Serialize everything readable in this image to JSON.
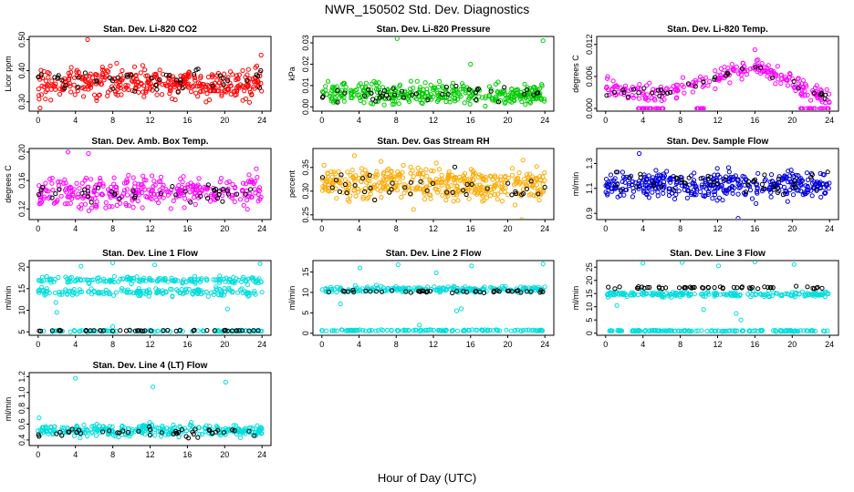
{
  "figure": {
    "title": "NWR_150502  Std. Dev. Diagnostics",
    "xlabel": "Hour of Day (UTC)"
  },
  "chart_data": [
    {
      "type": "scatter",
      "title": "Stan. Dev. Li-820 CO2",
      "ylabel": "Licor ppm",
      "xlim": [
        0,
        24
      ],
      "xticks": [
        0,
        4,
        8,
        12,
        16,
        20,
        24
      ],
      "ylim": [
        0.27,
        0.51
      ],
      "yticks": [
        0.3,
        0.4,
        0.5
      ],
      "ytick_labels": [
        "0.30",
        "0.40",
        "0.50"
      ],
      "color": "#ff0000",
      "series": [
        {
          "kind": "band",
          "x_range": [
            0,
            24
          ],
          "center": 0.36,
          "spread": 0.04,
          "count": 380,
          "color": "#ff0000"
        },
        {
          "kind": "band",
          "x_range": [
            0,
            24
          ],
          "center": 0.37,
          "spread": 0.03,
          "count": 45,
          "color": "#000000"
        }
      ],
      "outliers": [
        {
          "x": 5.3,
          "y": 0.5
        },
        {
          "x": 23.9,
          "y": 0.45
        },
        {
          "x": 0.2,
          "y": 0.28
        }
      ]
    },
    {
      "type": "scatter",
      "title": "Stan. Dev. Li-820 Pressure",
      "ylabel": "kPa",
      "xlim": [
        0,
        24
      ],
      "xticks": [
        0,
        4,
        8,
        12,
        16,
        20,
        24
      ],
      "ylim": [
        -0.002,
        0.033
      ],
      "yticks": [
        0.0,
        0.01,
        0.02,
        0.03
      ],
      "ytick_labels": [
        "0.00",
        "0.01",
        "0.02",
        "0.03"
      ],
      "color": "#00cc00",
      "series": [
        {
          "kind": "band",
          "x_range": [
            0,
            24
          ],
          "center": 0.006,
          "spread": 0.004,
          "count": 360,
          "color": "#00cc00"
        },
        {
          "kind": "band",
          "x_range": [
            0,
            24
          ],
          "center": 0.006,
          "spread": 0.003,
          "count": 40,
          "color": "#000000"
        }
      ],
      "outliers": [
        {
          "x": 8.1,
          "y": 0.032
        },
        {
          "x": 16.0,
          "y": 0.02
        },
        {
          "x": 23.8,
          "y": 0.031
        }
      ]
    },
    {
      "type": "scatter",
      "title": "Stan. Dev. Li-820 Temp.",
      "ylabel": "degrees C",
      "xlim": [
        0,
        24
      ],
      "xticks": [
        0,
        4,
        8,
        12,
        16,
        20,
        24
      ],
      "ylim": [
        -0.0005,
        0.0135
      ],
      "yticks": [
        0.0,
        0.006,
        0.012
      ],
      "ytick_labels": [
        "0.000",
        "0.006",
        "0.012"
      ],
      "color": "#ff00ff",
      "series": [
        {
          "kind": "curve",
          "x_range": [
            0,
            24
          ],
          "profile": [
            [
              0,
              0.004
            ],
            [
              3,
              0.003
            ],
            [
              6,
              0.003
            ],
            [
              9,
              0.004
            ],
            [
              12,
              0.006
            ],
            [
              16,
              0.008
            ],
            [
              19,
              0.006
            ],
            [
              21,
              0.004
            ],
            [
              24,
              0.002
            ]
          ],
          "spread": 0.0015,
          "count": 240,
          "color": "#ff00ff"
        },
        {
          "kind": "line_flat",
          "x_range": [
            3.5,
            6.5
          ],
          "y": 0.0,
          "count": 20,
          "color": "#ff00ff"
        },
        {
          "kind": "line_flat",
          "x_range": [
            9.5,
            10.5
          ],
          "y": 0.0,
          "count": 8,
          "color": "#ff00ff"
        },
        {
          "kind": "line_flat",
          "x_range": [
            20.5,
            24
          ],
          "y": 0.0,
          "count": 18,
          "color": "#ff00ff"
        },
        {
          "kind": "curve",
          "x_range": [
            0,
            24
          ],
          "profile": [
            [
              0,
              0.003
            ],
            [
              6,
              0.003
            ],
            [
              12,
              0.006
            ],
            [
              16,
              0.008
            ],
            [
              20,
              0.005
            ],
            [
              24,
              0.002
            ]
          ],
          "spread": 0.001,
          "count": 35,
          "color": "#000000"
        }
      ],
      "outliers": [
        {
          "x": 16.0,
          "y": 0.011
        }
      ]
    },
    {
      "type": "scatter",
      "title": "Stan. Dev. Amb. Box Temp.",
      "ylabel": "degrees C",
      "xlim": [
        0,
        24
      ],
      "xticks": [
        0,
        4,
        8,
        12,
        16,
        20,
        24
      ],
      "ylim": [
        0.105,
        0.205
      ],
      "yticks": [
        0.12,
        0.16,
        0.2
      ],
      "ytick_labels": [
        "0.12",
        "0.16",
        "0.20"
      ],
      "color": "#ff00ff",
      "series": [
        {
          "kind": "band",
          "x_range": [
            0,
            24
          ],
          "center": 0.145,
          "spread": 0.018,
          "count": 320,
          "color": "#ff00ff"
        },
        {
          "kind": "band",
          "x_range": [
            0,
            24
          ],
          "center": 0.142,
          "spread": 0.012,
          "count": 40,
          "color": "#000000"
        }
      ],
      "outliers": [
        {
          "x": 3.2,
          "y": 0.2
        },
        {
          "x": 5.4,
          "y": 0.198
        }
      ]
    },
    {
      "type": "scatter",
      "title": "Stan. Dev. Gas Stream RH",
      "ylabel": "percent",
      "xlim": [
        0,
        24
      ],
      "xticks": [
        0,
        4,
        8,
        12,
        16,
        20,
        24
      ],
      "ylim": [
        0.24,
        0.39
      ],
      "yticks": [
        0.25,
        0.3,
        0.35
      ],
      "ytick_labels": [
        "0.25",
        "0.30",
        "0.35"
      ],
      "color": "#ffaa00",
      "series": [
        {
          "kind": "band",
          "x_range": [
            0,
            24
          ],
          "center": 0.315,
          "spread": 0.028,
          "count": 420,
          "color": "#ffaa00"
        },
        {
          "kind": "band",
          "x_range": [
            0,
            24
          ],
          "center": 0.31,
          "spread": 0.025,
          "count": 40,
          "color": "#000000"
        }
      ],
      "outliers": [
        {
          "x": 3.5,
          "y": 0.375
        },
        {
          "x": 21.5,
          "y": 0.24
        }
      ]
    },
    {
      "type": "scatter",
      "title": "Stan. Dev. Sample Flow",
      "ylabel": "ml/min",
      "xlim": [
        0,
        24
      ],
      "xticks": [
        0,
        4,
        8,
        12,
        16,
        20,
        24
      ],
      "ylim": [
        0.85,
        1.42
      ],
      "yticks": [
        0.9,
        1.1,
        1.3
      ],
      "ytick_labels": [
        "0.9",
        "1.1",
        "1.3"
      ],
      "color": "#0000dd",
      "series": [
        {
          "kind": "band",
          "x_range": [
            0,
            24
          ],
          "center": 1.13,
          "spread": 0.09,
          "count": 400,
          "color": "#0000dd"
        },
        {
          "kind": "band",
          "x_range": [
            0,
            24
          ],
          "center": 1.15,
          "spread": 0.07,
          "count": 45,
          "color": "#000000"
        }
      ],
      "outliers": [
        {
          "x": 3.6,
          "y": 1.38
        },
        {
          "x": 14.2,
          "y": 0.86
        }
      ]
    },
    {
      "type": "scatter",
      "title": "Stan. Dev. Line 1 Flow",
      "ylabel": "ml/min",
      "xlim": [
        0,
        24
      ],
      "xticks": [
        0,
        4,
        8,
        12,
        16,
        20,
        24
      ],
      "ylim": [
        4.2,
        21.5
      ],
      "yticks": [
        5,
        10,
        15,
        20
      ],
      "ytick_labels": [
        "5",
        "10",
        "15",
        "20"
      ],
      "color": "#00dddd",
      "series": [
        {
          "kind": "band",
          "x_range": [
            0,
            24
          ],
          "center": 17.0,
          "spread": 0.6,
          "count": 170,
          "color": "#00dddd"
        },
        {
          "kind": "band",
          "x_range": [
            0,
            24
          ],
          "center": 14.2,
          "spread": 0.7,
          "count": 170,
          "color": "#00dddd"
        },
        {
          "kind": "band",
          "x_range": [
            0,
            24
          ],
          "center": 5.2,
          "spread": 0.15,
          "count": 90,
          "color": "#00dddd"
        },
        {
          "kind": "band",
          "x_range": [
            0,
            24
          ],
          "center": 5.3,
          "spread": 0.1,
          "count": 45,
          "color": "#000000"
        }
      ],
      "outliers": [
        {
          "x": 8.0,
          "y": 21.0
        },
        {
          "x": 4.6,
          "y": 20.2
        },
        {
          "x": 12.5,
          "y": 20.5
        },
        {
          "x": 23.8,
          "y": 20.8
        },
        {
          "x": 2.0,
          "y": 9.5
        },
        {
          "x": 1.9,
          "y": 11.8
        },
        {
          "x": 8.0,
          "y": 6.2
        },
        {
          "x": 20.3,
          "y": 10.3
        }
      ]
    },
    {
      "type": "scatter",
      "title": "Stan. Dev. Line 2 Flow",
      "ylabel": "ml/min",
      "xlim": [
        0,
        24
      ],
      "xticks": [
        0,
        4,
        8,
        12,
        16,
        20,
        24
      ],
      "ylim": [
        -0.5,
        17.8
      ],
      "yticks": [
        0,
        5,
        10,
        15
      ],
      "ytick_labels": [
        "0",
        "5",
        "10",
        "15"
      ],
      "color": "#00dddd",
      "series": [
        {
          "kind": "band",
          "x_range": [
            0,
            24
          ],
          "center": 10.8,
          "spread": 0.6,
          "count": 210,
          "color": "#00dddd"
        },
        {
          "kind": "band",
          "x_range": [
            0,
            24
          ],
          "center": 0.7,
          "spread": 0.15,
          "count": 120,
          "color": "#00dddd"
        },
        {
          "kind": "band",
          "x_range": [
            0,
            24
          ],
          "center": 10.3,
          "spread": 0.3,
          "count": 45,
          "color": "#000000"
        }
      ],
      "outliers": [
        {
          "x": 4.1,
          "y": 16.0
        },
        {
          "x": 8.2,
          "y": 16.8
        },
        {
          "x": 16.1,
          "y": 16.5
        },
        {
          "x": 23.8,
          "y": 17.0
        },
        {
          "x": 12.3,
          "y": 14.8
        },
        {
          "x": 2.0,
          "y": 7.2
        },
        {
          "x": 14.5,
          "y": 5.5
        },
        {
          "x": 15.0,
          "y": 6.0
        },
        {
          "x": 10.5,
          "y": 2.0
        }
      ]
    },
    {
      "type": "scatter",
      "title": "Stan. Dev. Line 3 Flow",
      "ylabel": "ml/min",
      "xlim": [
        0,
        24
      ],
      "xticks": [
        0,
        4,
        8,
        12,
        16,
        20,
        24
      ],
      "ylim": [
        -0.8,
        27.5
      ],
      "yticks": [
        0,
        5,
        10,
        15,
        20,
        25
      ],
      "ytick_labels": [
        "0",
        "5",
        "10",
        "15",
        "20",
        "25"
      ],
      "color": "#00dddd",
      "series": [
        {
          "kind": "band",
          "x_range": [
            0,
            24
          ],
          "center": 14.8,
          "spread": 0.8,
          "count": 200,
          "color": "#00dddd"
        },
        {
          "kind": "band",
          "x_range": [
            0,
            24
          ],
          "center": 0.9,
          "spread": 0.2,
          "count": 130,
          "color": "#00dddd"
        },
        {
          "kind": "band",
          "x_range": [
            0,
            24
          ],
          "center": 17.2,
          "spread": 0.4,
          "count": 50,
          "color": "#000000"
        }
      ],
      "outliers": [
        {
          "x": 4.0,
          "y": 26.5
        },
        {
          "x": 8.2,
          "y": 26.8
        },
        {
          "x": 12.1,
          "y": 25.5
        },
        {
          "x": 16.0,
          "y": 27.0
        },
        {
          "x": 20.2,
          "y": 26.0
        },
        {
          "x": 10.5,
          "y": 9.0
        },
        {
          "x": 14.0,
          "y": 7.5
        },
        {
          "x": 14.5,
          "y": 5.0
        },
        {
          "x": 1.2,
          "y": 10.5
        }
      ]
    },
    {
      "type": "scatter",
      "title": "Stan. Dev. Line 4 (LT) Flow",
      "ylabel": "ml/min",
      "xlim": [
        0,
        24
      ],
      "xticks": [
        0,
        4,
        8,
        12,
        16,
        20,
        24
      ],
      "ylim": [
        0.33,
        1.25
      ],
      "yticks": [
        0.4,
        0.6,
        0.8,
        1.0,
        1.2
      ],
      "ytick_labels": [
        "0.4",
        "0.6",
        "0.8",
        "1.0",
        "1.2"
      ],
      "color": "#00dddd",
      "series": [
        {
          "kind": "band",
          "x_range": [
            0,
            24
          ],
          "center": 0.52,
          "spread": 0.06,
          "count": 300,
          "color": "#00dddd"
        },
        {
          "kind": "band",
          "x_range": [
            0,
            24
          ],
          "center": 0.5,
          "spread": 0.05,
          "count": 45,
          "color": "#000000"
        }
      ],
      "outliers": [
        {
          "x": 4.0,
          "y": 1.18
        },
        {
          "x": 12.3,
          "y": 1.07
        },
        {
          "x": 20.1,
          "y": 1.13
        },
        {
          "x": 0.1,
          "y": 0.68
        }
      ]
    }
  ]
}
